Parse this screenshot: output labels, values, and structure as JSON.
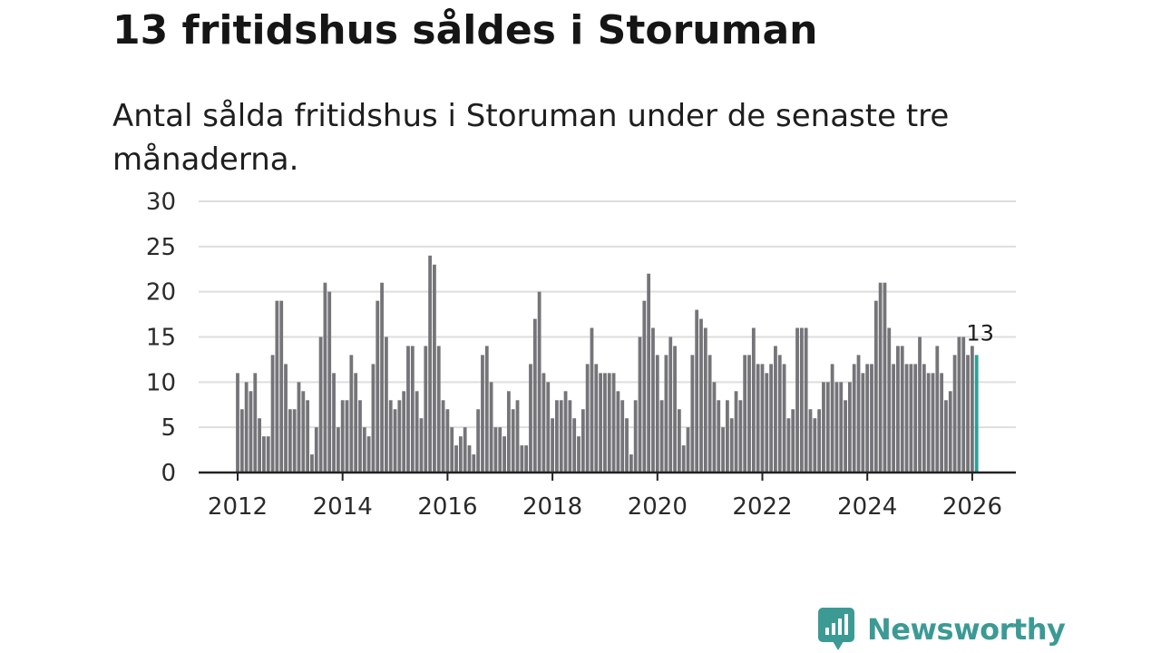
{
  "title": "13 fritidshus såldes i Storuman",
  "subtitle": "Antal sålda fritidshus i Storuman under de senaste tre månaderna.",
  "brand": {
    "name": "Newsworthy",
    "color": "#3c9a95",
    "icon": "bar-chart-speech-bubble-icon"
  },
  "colors": {
    "bar": "#757479",
    "highlight": "#2aa198",
    "grid": "#dedede",
    "axis": "#222222"
  },
  "chart_data": {
    "type": "bar",
    "title": "13 fritidshus såldes i Storuman",
    "xlabel": "",
    "ylabel": "",
    "ylim": [
      0,
      30
    ],
    "yticks": [
      0,
      5,
      10,
      15,
      20,
      25,
      30
    ],
    "xticks": [
      2012,
      2014,
      2016,
      2018,
      2020,
      2022,
      2024,
      2026
    ],
    "x_start": 2012.0,
    "x_step": 0.08333,
    "grid": true,
    "highlight_last": true,
    "last_label": "13",
    "values": [
      11,
      7,
      10,
      9,
      11,
      6,
      4,
      4,
      13,
      19,
      19,
      12,
      7,
      7,
      10,
      9,
      8,
      2,
      5,
      15,
      21,
      20,
      11,
      5,
      8,
      8,
      13,
      11,
      8,
      5,
      4,
      12,
      19,
      21,
      15,
      8,
      7,
      8,
      9,
      14,
      14,
      9,
      6,
      14,
      24,
      23,
      14,
      8,
      7,
      5,
      3,
      4,
      5,
      3,
      2,
      7,
      13,
      14,
      10,
      5,
      5,
      4,
      9,
      7,
      8,
      3,
      3,
      12,
      17,
      20,
      11,
      10,
      6,
      8,
      8,
      9,
      8,
      6,
      4,
      7,
      12,
      16,
      12,
      11,
      11,
      11,
      11,
      9,
      8,
      6,
      2,
      8,
      15,
      19,
      22,
      16,
      13,
      8,
      13,
      15,
      14,
      7,
      3,
      5,
      13,
      18,
      17,
      16,
      13,
      10,
      8,
      5,
      8,
      6,
      9,
      8,
      13,
      13,
      16,
      12,
      12,
      11,
      12,
      14,
      13,
      12,
      6,
      7,
      16,
      16,
      16,
      7,
      6,
      7,
      10,
      10,
      12,
      10,
      10,
      8,
      10,
      12,
      13,
      11,
      12,
      12,
      19,
      21,
      21,
      16,
      12,
      14,
      14,
      12,
      12,
      12,
      15,
      12,
      11,
      11,
      14,
      11,
      8,
      9,
      13,
      15,
      15,
      13,
      14,
      13
    ]
  }
}
